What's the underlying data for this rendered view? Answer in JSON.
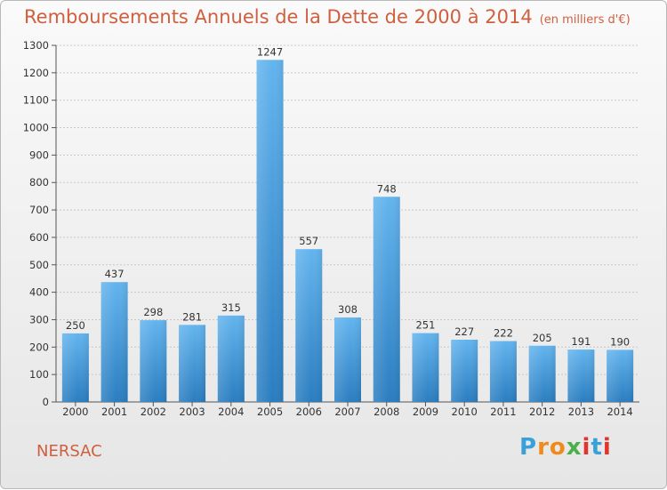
{
  "header": {
    "title": "Remboursements Annuels de la Dette de 2000 à 2014",
    "unit": "(en milliers d'€)"
  },
  "footer": {
    "place": "NERSAC",
    "logo": "Proxiti"
  },
  "colors": {
    "title": "#d05f3f",
    "bar_top": "#63b4ee",
    "bar_bottom": "#2a7dc0"
  },
  "chart_data": {
    "type": "bar",
    "categories": [
      "2000",
      "2001",
      "2002",
      "2003",
      "2004",
      "2005",
      "2006",
      "2007",
      "2008",
      "2009",
      "2010",
      "2011",
      "2012",
      "2013",
      "2014"
    ],
    "values": [
      250,
      437,
      298,
      281,
      315,
      1247,
      557,
      308,
      748,
      251,
      227,
      222,
      205,
      191,
      190
    ],
    "ylim": [
      0,
      1300
    ],
    "yticks": [
      0,
      100,
      200,
      300,
      400,
      500,
      600,
      700,
      800,
      900,
      1000,
      1100,
      1200,
      1300
    ],
    "grid": true,
    "data_labels": true
  }
}
